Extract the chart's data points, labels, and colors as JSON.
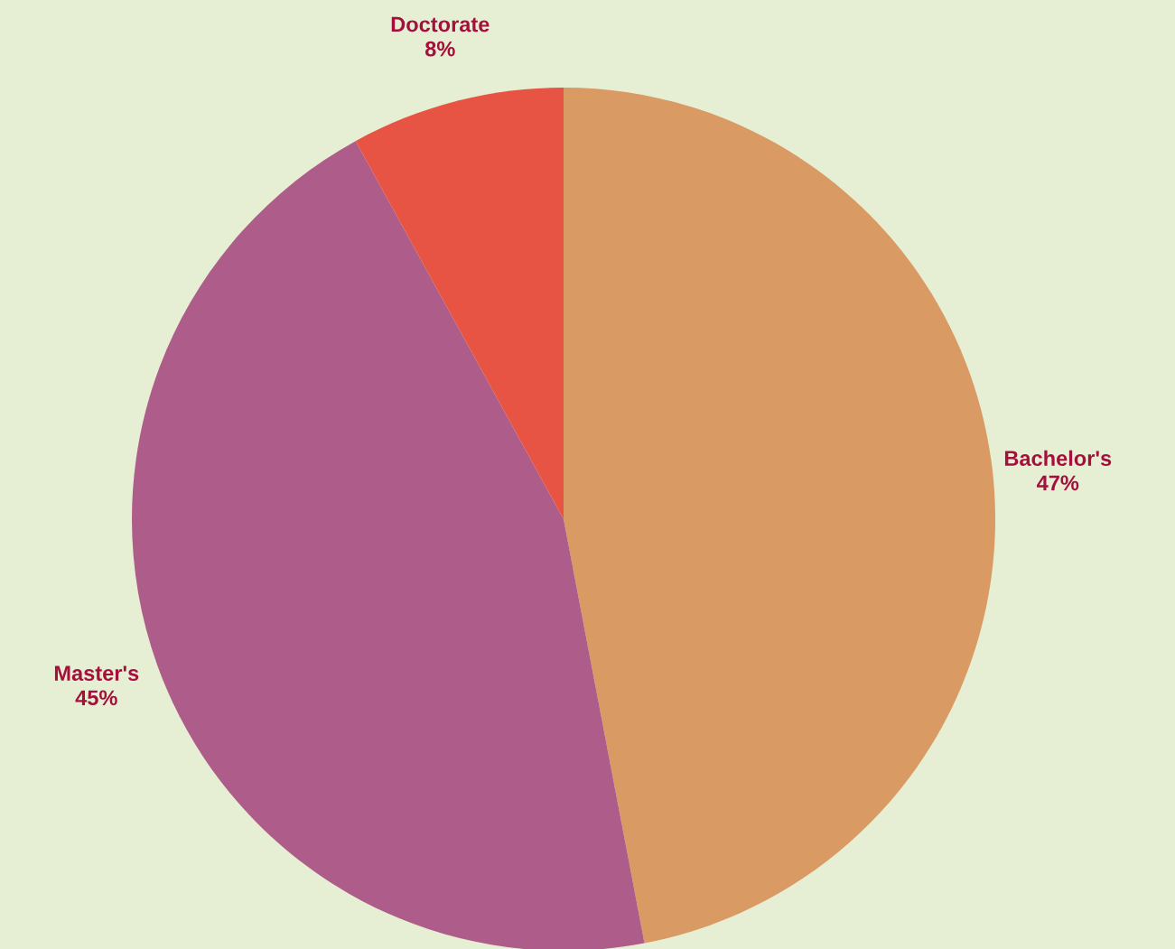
{
  "chart_data": {
    "type": "pie",
    "categories": [
      "Bachelor's",
      "Master's",
      "Doctorate"
    ],
    "values": [
      47,
      45,
      8
    ],
    "colors": [
      "#d99a63",
      "#ae5c89",
      "#e85444"
    ],
    "value_labels": [
      "47%",
      "45%",
      "8%"
    ]
  }
}
